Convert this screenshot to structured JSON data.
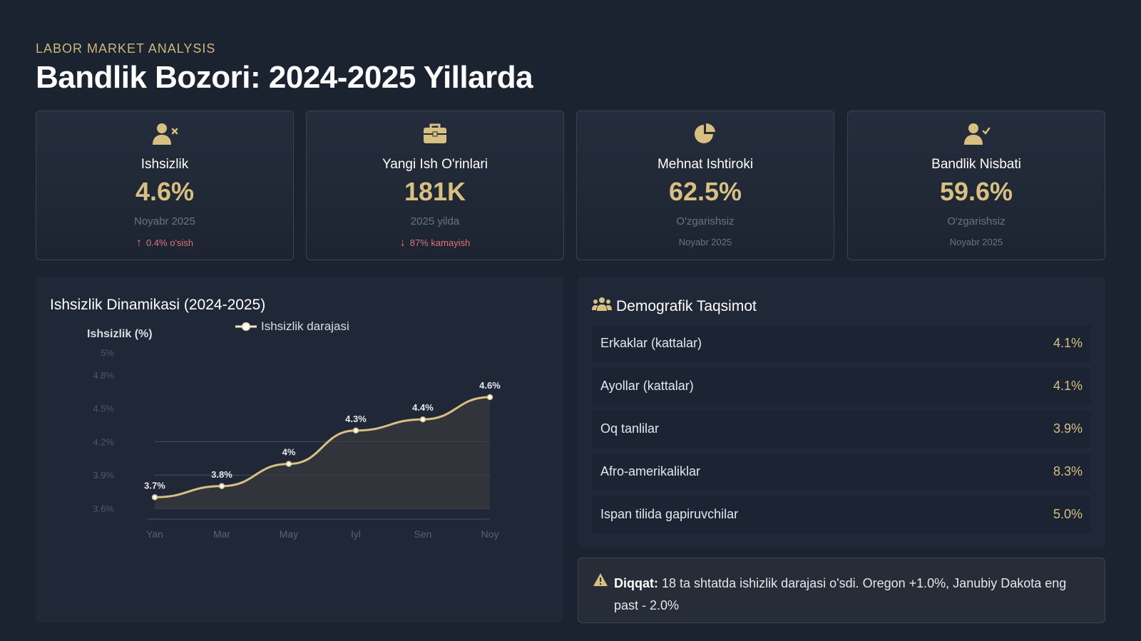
{
  "header": {
    "eyebrow": "LABOR MARKET ANALYSIS",
    "title": "Bandlik Bozori: 2024-2025 Yillarda"
  },
  "kpis": [
    {
      "icon": "user-x-icon",
      "label": "Ishsizlik",
      "value": "4.6%",
      "sub": "Noyabr 2025",
      "change": "0.4% o'sish",
      "change_dir": "up"
    },
    {
      "icon": "briefcase-icon",
      "label": "Yangi Ish O'rinlari",
      "value": "181K",
      "sub": "2025 yilda",
      "change": "87% kamayish",
      "change_dir": "down"
    },
    {
      "icon": "pie-chart-icon",
      "label": "Mehnat Ishtiroki",
      "value": "62.5%",
      "sub": "O'zgarishsiz",
      "change": "Noyabr 2025",
      "change_dir": "none"
    },
    {
      "icon": "user-check-icon",
      "label": "Bandlik Nisbati",
      "value": "59.6%",
      "sub": "O'zgarishsiz",
      "change": "Noyabr 2025",
      "change_dir": "none"
    }
  ],
  "chart_panel": {
    "title": "Ishsizlik Dinamikasi (2024-2025)"
  },
  "chart_data": {
    "type": "line",
    "categories": [
      "Yan",
      "Mar",
      "May",
      "Iyl",
      "Sen",
      "Noy"
    ],
    "series": [
      {
        "name": "Ishsizlik darajasi",
        "values": [
          3.7,
          3.8,
          4.0,
          4.3,
          4.4,
          4.6
        ],
        "data_labels": [
          "3.7%",
          "3.8%",
          "4%",
          "4.3%",
          "4.4%",
          "4.6%"
        ]
      }
    ],
    "ylabel": "Ishsizlik (%)",
    "y_ticks": [
      "3.6%",
      "3.9%",
      "4.2%",
      "4.5%",
      "4.8%",
      "5%"
    ],
    "ylim": [
      3.6,
      5.0
    ],
    "legend_position": "top",
    "grid": true,
    "colors": {
      "line": "#d8bf82",
      "fill": "#3a3a3c"
    }
  },
  "demographics": {
    "title": "Demografik Taqsimot",
    "icon": "users-icon",
    "rows": [
      {
        "label": "Erkaklar (kattalar)",
        "value": "4.1%"
      },
      {
        "label": "Ayollar (kattalar)",
        "value": "4.1%"
      },
      {
        "label": "Oq tanlilar",
        "value": "3.9%"
      },
      {
        "label": "Afro-amerikaliklar",
        "value": "8.3%"
      },
      {
        "label": "Ispan tilida gapiruvchilar",
        "value": "5.0%"
      }
    ]
  },
  "alert": {
    "icon": "warning-icon",
    "title": "Diqqat:",
    "text": "18 ta shtatda ishizlik darajasi o'sdi. Oregon +1.0%, Janubiy Dakota eng past - 2.0%"
  },
  "colors": {
    "background": "#1b2230",
    "accent": "#d8bf82",
    "negative": "#e0737b"
  }
}
